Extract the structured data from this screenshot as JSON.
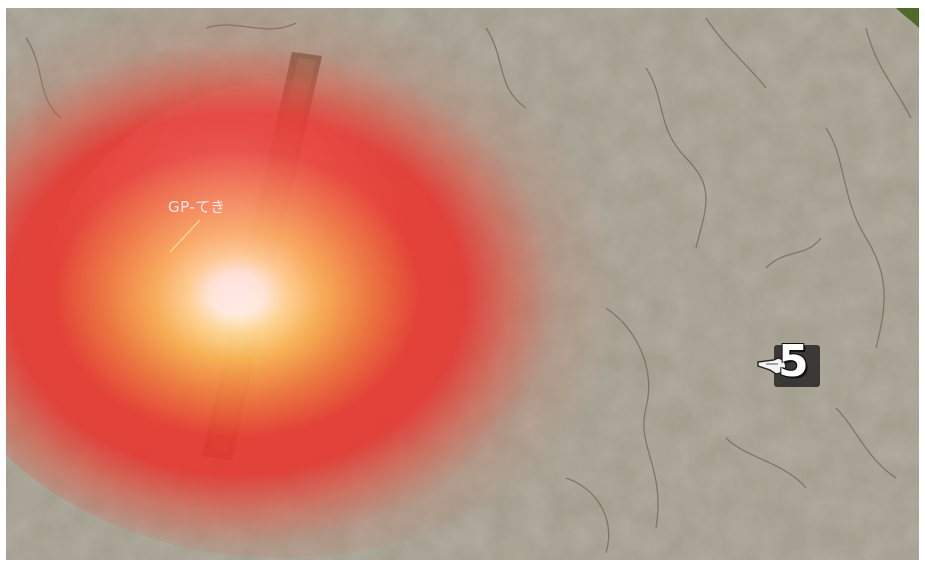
{
  "scene": {
    "type": "top-down battlefield",
    "terrain_color": "#9d9686",
    "explosion_colors": {
      "core": "#ffffff",
      "mid": "#f7b04f",
      "outer": "#e8342e"
    }
  },
  "unit": {
    "label": "GP-てき",
    "icon": "unit-pointer-line"
  },
  "marker": {
    "number": "5",
    "icon": "hand-pointer-icon"
  }
}
